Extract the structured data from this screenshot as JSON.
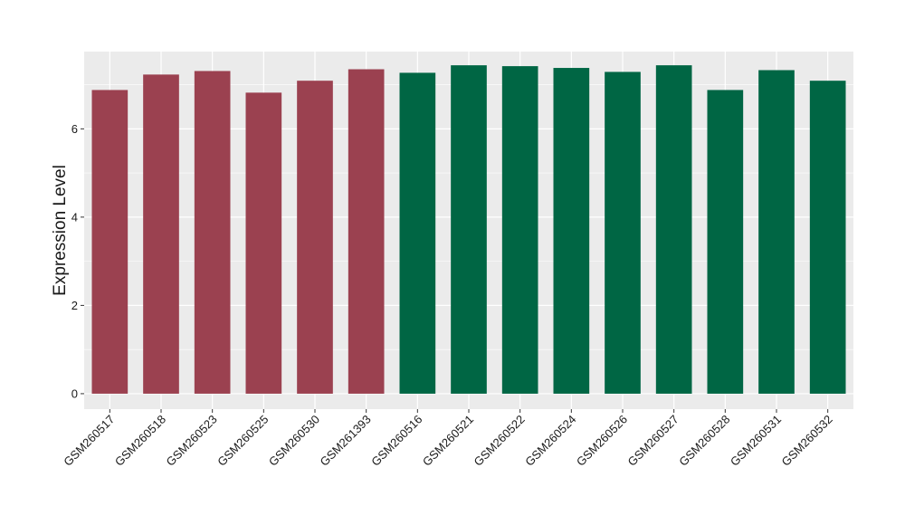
{
  "chart_data": {
    "type": "bar",
    "ylabel": "Expression Level",
    "xlabel": "",
    "title": "",
    "ylim": [
      -0.35,
      7.75
    ],
    "yticks": [
      0,
      2,
      4,
      6
    ],
    "ytick_labels": [
      "0",
      "2",
      "4",
      "6"
    ],
    "categories": [
      "GSM260517",
      "GSM260518",
      "GSM260523",
      "GSM260525",
      "GSM260530",
      "GSM261393",
      "GSM260516",
      "GSM260521",
      "GSM260522",
      "GSM260524",
      "GSM260526",
      "GSM260527",
      "GSM260528",
      "GSM260531",
      "GSM260532"
    ],
    "values": [
      6.88,
      7.23,
      7.31,
      6.82,
      7.09,
      7.35,
      7.27,
      7.44,
      7.42,
      7.38,
      7.29,
      7.44,
      6.88,
      7.33,
      7.09
    ],
    "groups": [
      0,
      0,
      0,
      0,
      0,
      0,
      1,
      1,
      1,
      1,
      1,
      1,
      1,
      1,
      1
    ],
    "group_colors": [
      "#9b4150",
      "#006644"
    ],
    "panel_background": "#ebebeb",
    "gridline_color": "#ffffff",
    "grid": true
  }
}
